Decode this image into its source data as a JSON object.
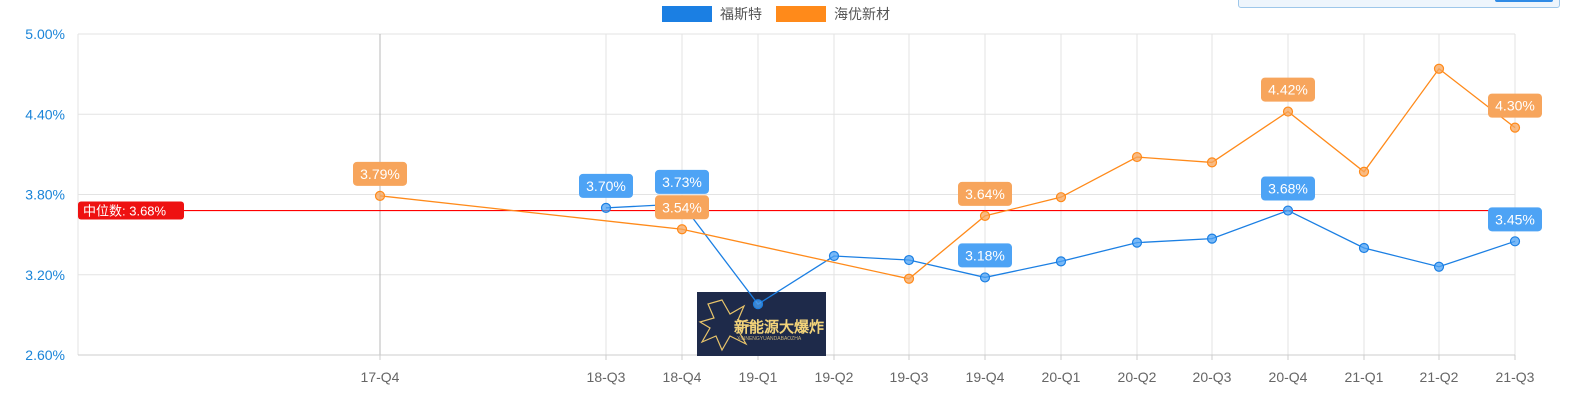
{
  "chart_data": {
    "type": "line",
    "categories": [
      "17-Q4",
      "18-Q3",
      "18-Q4",
      "19-Q1",
      "19-Q2",
      "19-Q3",
      "19-Q4",
      "20-Q1",
      "20-Q2",
      "20-Q3",
      "20-Q4",
      "21-Q1",
      "21-Q2",
      "21-Q3"
    ],
    "ylim": [
      2.6,
      5.0
    ],
    "yticks": [
      "2.60%",
      "3.20%",
      "3.80%",
      "4.40%",
      "5.00%"
    ],
    "grid": true,
    "legend_position": "top-center",
    "series": [
      {
        "name": "福斯特",
        "color": "#1b7fe3",
        "label_color": "#4da3f5",
        "values": [
          null,
          3.7,
          3.73,
          2.98,
          3.34,
          3.31,
          3.18,
          3.3,
          3.44,
          3.47,
          3.68,
          3.4,
          3.26,
          3.45
        ],
        "data_labels": [
          {
            "category": "18-Q3",
            "text": "3.70%"
          },
          {
            "category": "18-Q4",
            "text": "3.73%"
          },
          {
            "category": "19-Q4",
            "text": "3.18%"
          },
          {
            "category": "20-Q4",
            "text": "3.68%"
          },
          {
            "category": "21-Q3",
            "text": "3.45%"
          }
        ]
      },
      {
        "name": "海优新材",
        "color": "#ff8a1a",
        "label_color": "#f7a55c",
        "values": [
          3.79,
          null,
          3.54,
          null,
          null,
          3.17,
          3.64,
          3.78,
          4.08,
          4.04,
          4.42,
          3.97,
          4.74,
          4.3
        ],
        "data_labels": [
          {
            "category": "17-Q4",
            "text": "3.79%"
          },
          {
            "category": "18-Q4",
            "text": "3.54%"
          },
          {
            "category": "19-Q4",
            "text": "3.64%"
          },
          {
            "category": "20-Q4",
            "text": "4.42%"
          },
          {
            "category": "21-Q3",
            "text": "4.30%"
          }
        ]
      }
    ],
    "median": {
      "value": 3.68,
      "label": "中位数: 3.68%",
      "color": "#ff0000"
    }
  },
  "watermark": {
    "title": "新能源大爆炸",
    "subtitle": "XINNENGYUANDABAOZHA"
  }
}
